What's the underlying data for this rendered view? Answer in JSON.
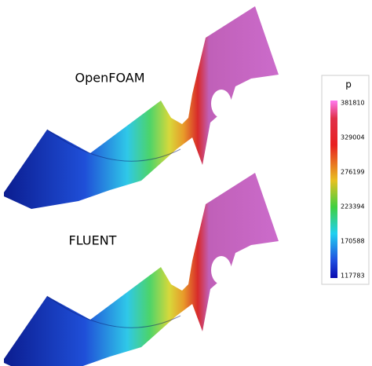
{
  "labels": [
    "OpenFOAM",
    "FLUENT"
  ],
  "colorbar": {
    "title": "p",
    "ticks": [
      381810,
      329004,
      276199,
      223394,
      170588,
      117783
    ]
  }
}
